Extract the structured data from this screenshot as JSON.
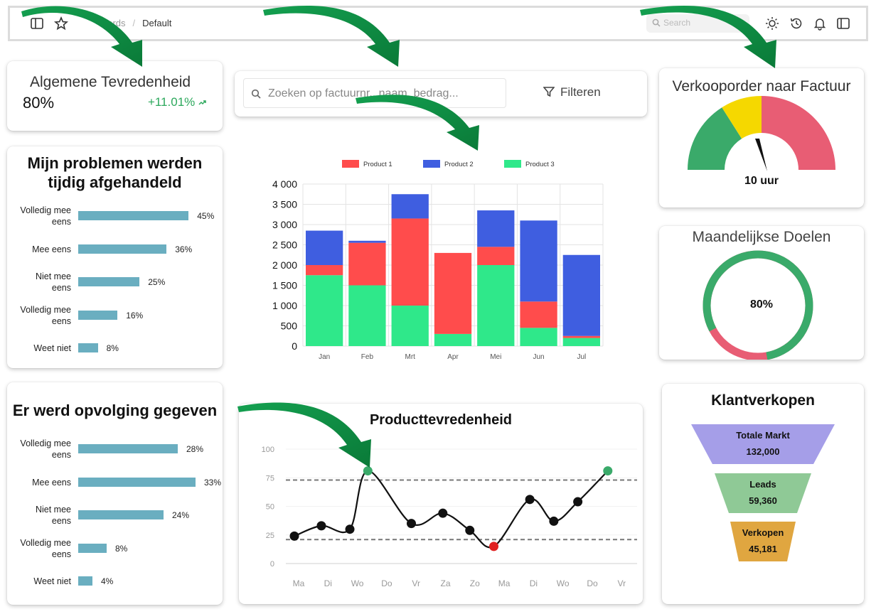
{
  "topbar": {
    "breadcrumb_parent": "oards",
    "breadcrumb_sep": "/",
    "breadcrumb_current": "Default",
    "search_placeholder": "Search"
  },
  "kpi": {
    "title": "Algemene Tevredenheid",
    "value": "80%",
    "delta": "+11.01%"
  },
  "survey1": {
    "title_line1": "Mijn problemen werden",
    "title_line2": "tijdig afgehandeld",
    "rows": [
      {
        "label1": "Volledig mee",
        "label2": "eens",
        "value": 45,
        "pct": "45%"
      },
      {
        "label1": "Mee eens",
        "label2": "",
        "value": 36,
        "pct": "36%"
      },
      {
        "label1": "Niet mee",
        "label2": "eens",
        "value": 25,
        "pct": "25%"
      },
      {
        "label1": "Volledig mee",
        "label2": "eens",
        "value": 16,
        "pct": "16%"
      },
      {
        "label1": "Weet niet",
        "label2": "",
        "value": 8,
        "pct": "8%"
      }
    ]
  },
  "survey2": {
    "title": "Er werd opvolging gegeven",
    "rows": [
      {
        "label1": "Volledig mee",
        "label2": "eens",
        "value": 28,
        "pct": "28%"
      },
      {
        "label1": "Mee eens",
        "label2": "",
        "value": 33,
        "pct": "33%"
      },
      {
        "label1": "Niet mee",
        "label2": "eens",
        "value": 24,
        "pct": "24%"
      },
      {
        "label1": "Volledig mee",
        "label2": "eens",
        "value": 8,
        "pct": "8%"
      },
      {
        "label1": "Weet niet",
        "label2": "",
        "value": 4,
        "pct": "4%"
      }
    ]
  },
  "searchbar": {
    "placeholder": "Zoeken op factuurnr., naam, bedrag...",
    "filter_label": "Filteren"
  },
  "gauge": {
    "title": "Verkooporder naar Factuur",
    "value_label": "10 uur"
  },
  "donut": {
    "title": "Maandelijkse Doelen",
    "value": 80,
    "value_label": "80%"
  },
  "funnel": {
    "title": "Klantverkopen",
    "stages": [
      {
        "name": "Totale Markt",
        "value": "132,000",
        "color": "#a59ee8"
      },
      {
        "name": "Leads",
        "value": "59,360",
        "color": "#8fc996"
      },
      {
        "name": "Verkopen",
        "value": "45,181",
        "color": "#e0a640"
      }
    ]
  },
  "chart_data": [
    {
      "type": "bar",
      "stacked": true,
      "categories": [
        "Jan",
        "Feb",
        "Mrt",
        "Apr",
        "Mei",
        "Jun",
        "Jul"
      ],
      "series": [
        {
          "name": "Product 1",
          "color": "#ff4c4c",
          "values": [
            250,
            1050,
            2150,
            2000,
            450,
            650,
            50
          ]
        },
        {
          "name": "Product 2",
          "color": "#3f5ee0",
          "values": [
            850,
            50,
            600,
            0,
            900,
            2000,
            2000
          ]
        },
        {
          "name": "Product 3",
          "color": "#2fe88a",
          "values": [
            1750,
            1500,
            1000,
            300,
            2000,
            450,
            200
          ]
        }
      ],
      "yticks": [
        "0",
        "500",
        "1 000",
        "1 500",
        "2 000",
        "2 500",
        "3 000",
        "3 500",
        "4 000"
      ],
      "ylim": [
        0,
        4000
      ],
      "legend_position": "top",
      "grid": true
    },
    {
      "type": "line",
      "title": "Producttevredenheid",
      "categories": [
        "Ma",
        "Di",
        "Wo",
        "Do",
        "Vr",
        "Za",
        "Zo",
        "Ma",
        "Di",
        "Wo",
        "Do",
        "Vr"
      ],
      "x": [
        0,
        0.9,
        1.85,
        2.45,
        3.9,
        4.95,
        5.85,
        6.65,
        7.85,
        8.65,
        9.45,
        10.45
      ],
      "y": [
        24,
        33,
        30,
        81,
        35,
        44,
        29,
        15,
        56,
        37,
        54,
        81
      ],
      "point_colors": [
        "#111",
        "#111",
        "#111",
        "#3aaa6a",
        "#111",
        "#111",
        "#111",
        "#e02020",
        "#111",
        "#111",
        "#111",
        "#3aaa6a"
      ],
      "yticks": [
        "0",
        "25",
        "50",
        "75",
        "100"
      ],
      "ylim": [
        0,
        100
      ],
      "reference_lines": [
        73,
        21
      ],
      "grid": true
    },
    {
      "type": "gauge",
      "segments": [
        {
          "color": "#3aaa6a",
          "from": 0,
          "to": 0.32
        },
        {
          "color": "#f5d800",
          "from": 0.32,
          "to": 0.5
        },
        {
          "color": "#e85d74",
          "from": 0.5,
          "to": 1
        }
      ],
      "needle": 0.44
    }
  ]
}
